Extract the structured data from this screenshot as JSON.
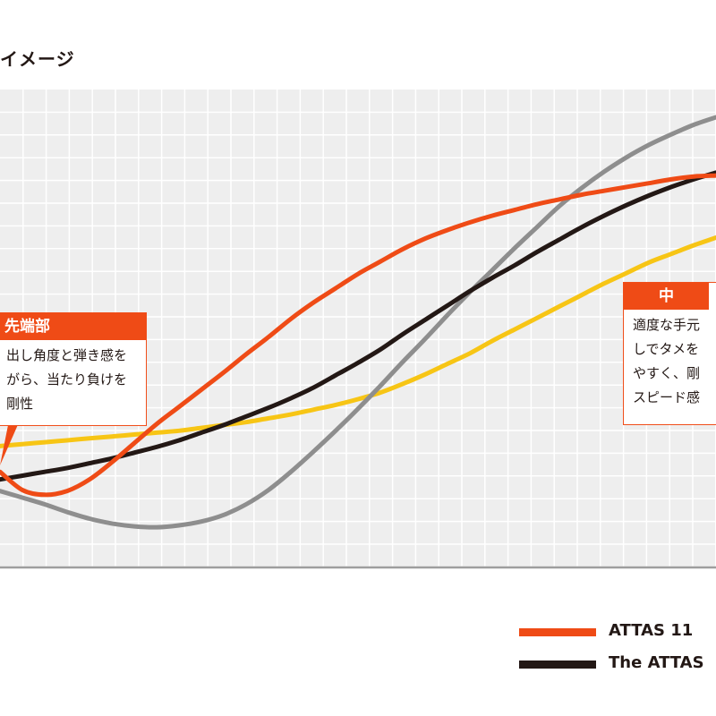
{
  "chart_data": {
    "type": "line",
    "title": "イメージ",
    "xlabel": "",
    "ylabel": "",
    "grid": true,
    "legend_placement": "bottom-right",
    "series": [
      {
        "name": "ATTAS 11",
        "color": "#ef4b16",
        "x": [
          0,
          0.5,
          1,
          1.5,
          2,
          2.5,
          3,
          3.5,
          4,
          4.5,
          5,
          5.5,
          6,
          6.5,
          7,
          7.5,
          8,
          8.5,
          9,
          9.5,
          10,
          10.5,
          11,
          11.5,
          12,
          12.5,
          13,
          13.5,
          14,
          14.5,
          15,
          15.5,
          16
        ],
        "y": [
          10,
          8.1,
          7.6,
          8.0,
          9.2,
          11.0,
          13.0,
          15.0,
          16.8,
          18.6,
          20.4,
          22.3,
          24.1,
          26.0,
          27.7,
          29.2,
          30.7,
          32.0,
          33.3,
          34.4,
          35.3,
          36.1,
          36.8,
          37.4,
          38.0,
          38.5,
          39.0,
          39.4,
          39.8,
          40.2,
          40.6,
          40.9,
          41.0
        ]
      },
      {
        "name": "The ATTAS",
        "color": "#231815",
        "x": [
          0,
          0.5,
          1,
          1.5,
          2,
          2.5,
          3,
          3.5,
          4,
          4.5,
          5,
          5.5,
          6,
          6.5,
          7,
          7.5,
          8,
          8.5,
          9,
          9.5,
          10,
          10.5,
          11,
          11.5,
          12,
          12.5,
          13,
          13.5,
          14,
          14.5,
          15,
          15.5,
          16
        ],
        "y": [
          9.2,
          9.6,
          10.0,
          10.4,
          10.9,
          11.4,
          12.0,
          12.6,
          13.3,
          14.1,
          14.9,
          15.8,
          16.7,
          17.7,
          18.8,
          20.1,
          21.4,
          22.8,
          24.4,
          25.9,
          27.4,
          28.9,
          30.3,
          31.6,
          33.0,
          34.3,
          35.6,
          36.8,
          37.9,
          38.9,
          39.8,
          40.6,
          41.3
        ]
      },
      {
        "color": "#8e8e8e",
        "x": [
          0,
          0.5,
          1,
          1.5,
          2,
          2.5,
          3,
          3.5,
          4,
          4.5,
          5,
          5.5,
          6,
          6.5,
          7,
          7.5,
          8,
          8.5,
          9,
          9.5,
          10,
          10.5,
          11,
          11.5,
          12,
          12.5,
          13,
          13.5,
          14,
          14.5,
          15,
          15.5,
          16
        ],
        "y": [
          8.0,
          7.3,
          6.6,
          5.8,
          5.1,
          4.6,
          4.3,
          4.2,
          4.4,
          4.8,
          5.5,
          6.6,
          8.1,
          10.0,
          12.1,
          14.3,
          16.6,
          19.0,
          21.5,
          23.9,
          26.4,
          28.8,
          31.1,
          33.4,
          35.6,
          37.8,
          39.7,
          41.4,
          42.9,
          44.2,
          45.3,
          46.3,
          47.1
        ]
      },
      {
        "color": "#f7c515",
        "x": [
          0,
          0.5,
          1,
          1.5,
          2,
          2.5,
          3,
          3.5,
          4,
          4.5,
          5,
          5.5,
          6,
          6.5,
          7,
          7.5,
          8,
          8.5,
          9,
          9.5,
          10,
          10.5,
          11,
          11.5,
          12,
          12.5,
          13,
          13.5,
          14,
          14.5,
          15,
          15.5,
          16
        ],
        "y": [
          12.7,
          12.9,
          13.1,
          13.3,
          13.5,
          13.7,
          13.9,
          14.1,
          14.3,
          14.6,
          14.9,
          15.2,
          15.6,
          16.0,
          16.5,
          17.0,
          17.6,
          18.3,
          19.2,
          20.2,
          21.3,
          22.4,
          23.7,
          24.9,
          26.1,
          27.3,
          28.5,
          29.7,
          30.8,
          31.9,
          32.8,
          33.7,
          34.5
        ]
      }
    ],
    "xlim": [
      0,
      16
    ],
    "ylim": [
      0,
      50
    ]
  },
  "callouts": {
    "left": {
      "title": "先端部",
      "lines": [
        "出し角度と弾き感を",
        "がら、当たり負けを",
        "剛性"
      ]
    },
    "right": {
      "title": "中",
      "lines": [
        "適度な手元",
        "しでタメを",
        "やすく、剛",
        "スピード感"
      ]
    }
  },
  "legend": [
    {
      "label": "ATTAS 11",
      "color": "#ef4b16"
    },
    {
      "label": "The ATTAS",
      "color": "#231815"
    }
  ],
  "colors": {
    "grid_bg": "#eeeeee",
    "grid_line": "#ffffff",
    "baseline": "#9e9e9e"
  }
}
